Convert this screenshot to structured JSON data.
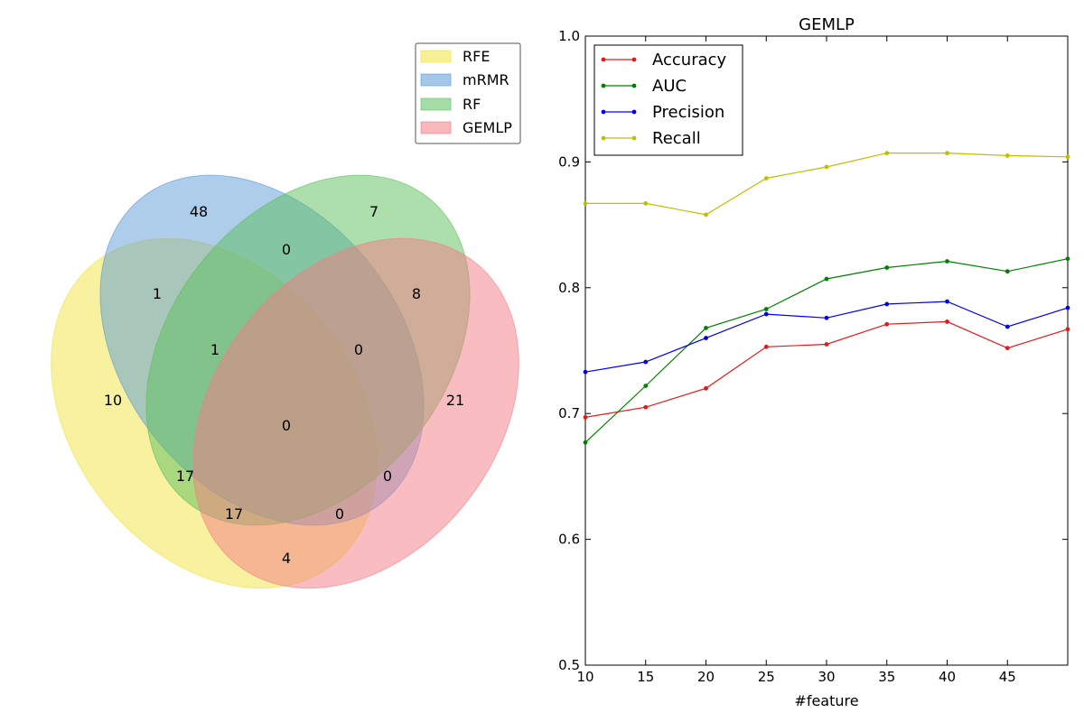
{
  "chart_data": [
    {
      "type": "venn",
      "sets": [
        {
          "name": "RFE",
          "color": "#f0e442"
        },
        {
          "name": "mRMR",
          "color": "#5b9bd5"
        },
        {
          "name": "RF",
          "color": "#5cc05c"
        },
        {
          "name": "GEMLP",
          "color": "#f47c84"
        }
      ],
      "legend_position": "top-right",
      "regions": [
        {
          "sets": [
            "mRMR"
          ],
          "value": 48
        },
        {
          "sets": [
            "RF"
          ],
          "value": 7
        },
        {
          "sets": [
            "mRMR",
            "RF"
          ],
          "value": 0
        },
        {
          "sets": [
            "RFE",
            "mRMR"
          ],
          "value": 1
        },
        {
          "sets": [
            "RF",
            "GEMLP"
          ],
          "value": 8
        },
        {
          "sets": [
            "RFE",
            "mRMR",
            "RF"
          ],
          "value": 1
        },
        {
          "sets": [
            "mRMR",
            "RF",
            "GEMLP"
          ],
          "value": 0
        },
        {
          "sets": [
            "RFE"
          ],
          "value": 10
        },
        {
          "sets": [
            "GEMLP"
          ],
          "value": 21
        },
        {
          "sets": [
            "RFE",
            "mRMR",
            "RF",
            "GEMLP"
          ],
          "value": 0
        },
        {
          "sets": [
            "RFE",
            "RF"
          ],
          "value": 17
        },
        {
          "sets": [
            "mRMR",
            "GEMLP"
          ],
          "value": 0
        },
        {
          "sets": [
            "RFE",
            "RF",
            "GEMLP"
          ],
          "value": 17
        },
        {
          "sets": [
            "RFE",
            "mRMR",
            "GEMLP"
          ],
          "value": 0
        },
        {
          "sets": [
            "RFE",
            "GEMLP"
          ],
          "value": 4
        }
      ]
    },
    {
      "type": "line",
      "title": "GEMLP",
      "xlabel": "#feature",
      "ylabel": "",
      "x": [
        10,
        15,
        20,
        25,
        30,
        35,
        40,
        45,
        50
      ],
      "xlim": [
        10,
        50
      ],
      "ylim": [
        0.5,
        1.0
      ],
      "xticks": [
        "10",
        "15",
        "20",
        "25",
        "30",
        "35",
        "40",
        "45"
      ],
      "yticks": [
        "0.5",
        "0.6",
        "0.7",
        "0.8",
        "0.9",
        "1.0"
      ],
      "grid": false,
      "legend_position": "top-left",
      "series": [
        {
          "name": "Accuracy",
          "color": "#e31a1c",
          "values": [
            0.697,
            0.705,
            0.72,
            0.753,
            0.755,
            0.771,
            0.773,
            0.752,
            0.767
          ]
        },
        {
          "name": "AUC",
          "color": "#008000",
          "values": [
            0.677,
            0.722,
            0.768,
            0.783,
            0.807,
            0.816,
            0.821,
            0.813,
            0.823
          ]
        },
        {
          "name": "Precision",
          "color": "#0000ee",
          "values": [
            0.733,
            0.741,
            0.76,
            0.779,
            0.776,
            0.787,
            0.789,
            0.769,
            0.784
          ]
        },
        {
          "name": "Recall",
          "color": "#bfbf00",
          "values": [
            0.867,
            0.867,
            0.858,
            0.887,
            0.896,
            0.907,
            0.907,
            0.905,
            0.904
          ]
        }
      ]
    }
  ]
}
